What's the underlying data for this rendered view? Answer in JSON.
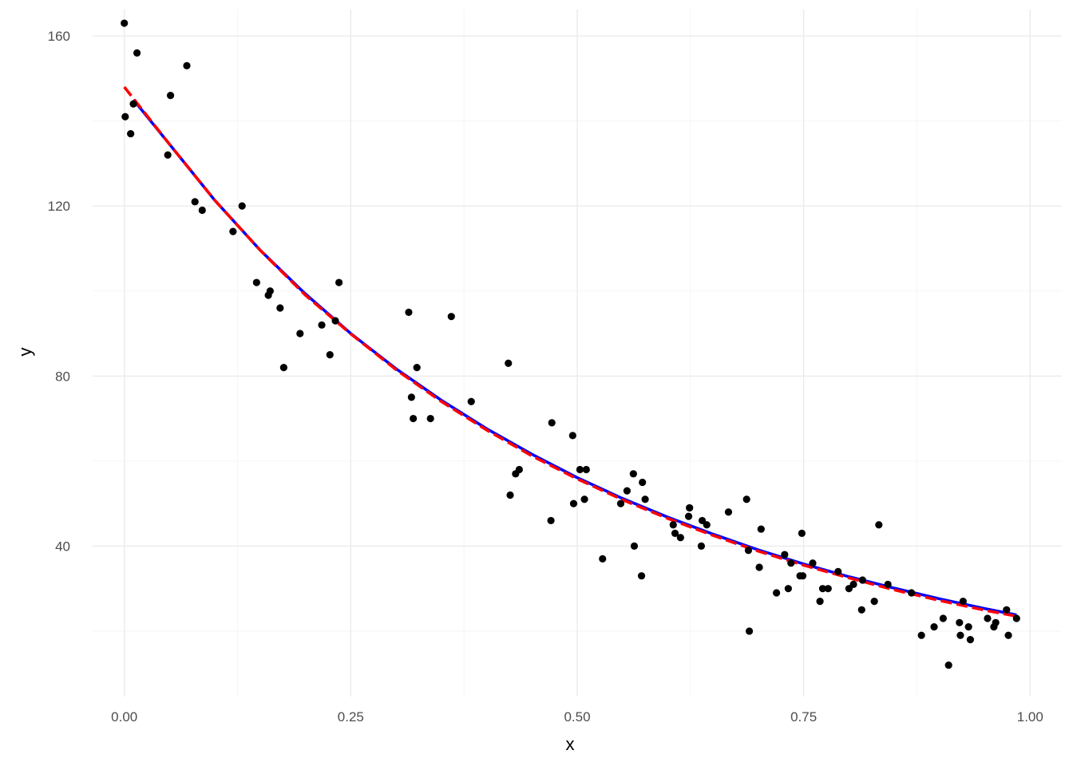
{
  "chart_data": {
    "type": "scatter",
    "xlabel": "x",
    "ylabel": "y",
    "xlim": [
      -0.035,
      1.035
    ],
    "ylim": [
      4.6,
      166.2
    ],
    "x_ticks": [
      0.0,
      0.25,
      0.5,
      0.75,
      1.0
    ],
    "x_tick_labels": [
      "0.00",
      "0.25",
      "0.50",
      "0.75",
      "1.00"
    ],
    "y_ticks": [
      40,
      80,
      120,
      160
    ],
    "y_tick_labels": [
      "40",
      "80",
      "120",
      "160"
    ],
    "grid": true,
    "legend": "none",
    "series": [
      {
        "kind": "points",
        "color": "#000000",
        "points": [
          [
            0.0,
            163.0
          ],
          [
            0.001,
            141.0
          ],
          [
            0.007,
            137.0
          ],
          [
            0.01,
            144.0
          ],
          [
            0.014,
            156.0
          ],
          [
            0.048,
            132.0
          ],
          [
            0.051,
            146.0
          ],
          [
            0.069,
            153.0
          ],
          [
            0.078,
            121.0
          ],
          [
            0.086,
            119.0
          ],
          [
            0.12,
            114.0
          ],
          [
            0.13,
            120.0
          ],
          [
            0.146,
            102.0
          ],
          [
            0.159,
            99.0
          ],
          [
            0.161,
            100.0
          ],
          [
            0.172,
            96.0
          ],
          [
            0.176,
            82.0
          ],
          [
            0.194,
            90.0
          ],
          [
            0.218,
            92.0
          ],
          [
            0.227,
            85.0
          ],
          [
            0.233,
            93.0
          ],
          [
            0.237,
            102.0
          ],
          [
            0.314,
            95.0
          ],
          [
            0.317,
            75.0
          ],
          [
            0.319,
            70.0
          ],
          [
            0.323,
            82.0
          ],
          [
            0.338,
            70.0
          ],
          [
            0.361,
            94.0
          ],
          [
            0.383,
            74.0
          ],
          [
            0.424,
            83.0
          ],
          [
            0.426,
            52.0
          ],
          [
            0.432,
            57.0
          ],
          [
            0.436,
            58.0
          ],
          [
            0.471,
            46.0
          ],
          [
            0.472,
            69.0
          ],
          [
            0.495,
            66.0
          ],
          [
            0.496,
            50.0
          ],
          [
            0.503,
            58.0
          ],
          [
            0.508,
            51.0
          ],
          [
            0.51,
            58.0
          ],
          [
            0.528,
            37.0
          ],
          [
            0.548,
            50.0
          ],
          [
            0.555,
            53.0
          ],
          [
            0.562,
            57.0
          ],
          [
            0.563,
            40.0
          ],
          [
            0.571,
            33.0
          ],
          [
            0.572,
            55.0
          ],
          [
            0.575,
            51.0
          ],
          [
            0.606,
            45.0
          ],
          [
            0.608,
            43.0
          ],
          [
            0.614,
            42.0
          ],
          [
            0.623,
            47.0
          ],
          [
            0.624,
            49.0
          ],
          [
            0.637,
            40.0
          ],
          [
            0.638,
            46.0
          ],
          [
            0.643,
            45.0
          ],
          [
            0.667,
            48.0
          ],
          [
            0.687,
            51.0
          ],
          [
            0.689,
            39.0
          ],
          [
            0.69,
            20.0
          ],
          [
            0.701,
            35.0
          ],
          [
            0.703,
            44.0
          ],
          [
            0.72,
            29.0
          ],
          [
            0.729,
            38.0
          ],
          [
            0.733,
            30.0
          ],
          [
            0.736,
            36.0
          ],
          [
            0.746,
            33.0
          ],
          [
            0.748,
            43.0
          ],
          [
            0.749,
            33.0
          ],
          [
            0.76,
            36.0
          ],
          [
            0.768,
            27.0
          ],
          [
            0.771,
            30.0
          ],
          [
            0.777,
            30.0
          ],
          [
            0.788,
            34.0
          ],
          [
            0.8,
            30.0
          ],
          [
            0.805,
            31.0
          ],
          [
            0.814,
            25.0
          ],
          [
            0.815,
            32.0
          ],
          [
            0.828,
            27.0
          ],
          [
            0.833,
            45.0
          ],
          [
            0.843,
            31.0
          ],
          [
            0.869,
            29.0
          ],
          [
            0.88,
            19.0
          ],
          [
            0.894,
            21.0
          ],
          [
            0.904,
            23.0
          ],
          [
            0.91,
            12.0
          ],
          [
            0.922,
            22.0
          ],
          [
            0.923,
            19.0
          ],
          [
            0.926,
            27.0
          ],
          [
            0.932,
            21.0
          ],
          [
            0.934,
            18.0
          ],
          [
            0.953,
            23.0
          ],
          [
            0.96,
            21.0
          ],
          [
            0.962,
            22.0
          ],
          [
            0.974,
            25.0
          ],
          [
            0.976,
            19.0
          ],
          [
            0.985,
            23.0
          ]
        ]
      },
      {
        "kind": "line",
        "color": "#0000ff",
        "dash": "solid",
        "points": [
          [
            0.01,
            145.0
          ],
          [
            0.05,
            134.5
          ],
          [
            0.1,
            121.3
          ],
          [
            0.15,
            109.6
          ],
          [
            0.2,
            99.3
          ],
          [
            0.25,
            90.0
          ],
          [
            0.3,
            81.7
          ],
          [
            0.35,
            74.3
          ],
          [
            0.4,
            67.6
          ],
          [
            0.45,
            61.6
          ],
          [
            0.5,
            56.1
          ],
          [
            0.55,
            51.2
          ],
          [
            0.6,
            46.8
          ],
          [
            0.65,
            42.8
          ],
          [
            0.7,
            39.1
          ],
          [
            0.75,
            35.8
          ],
          [
            0.8,
            32.8
          ],
          [
            0.85,
            30.1
          ],
          [
            0.9,
            27.6
          ],
          [
            0.95,
            25.3
          ],
          [
            0.985,
            23.8
          ]
        ]
      },
      {
        "kind": "line",
        "color": "#ff0000",
        "dash": "dashed",
        "points": [
          [
            0.0,
            148.0
          ],
          [
            0.05,
            134.5
          ],
          [
            0.1,
            121.3
          ],
          [
            0.15,
            109.6
          ],
          [
            0.2,
            99.0
          ],
          [
            0.25,
            89.9
          ],
          [
            0.3,
            81.5
          ],
          [
            0.35,
            74.0
          ],
          [
            0.4,
            67.3
          ],
          [
            0.45,
            61.2
          ],
          [
            0.5,
            55.8
          ],
          [
            0.55,
            50.9
          ],
          [
            0.6,
            46.5
          ],
          [
            0.65,
            42.5
          ],
          [
            0.7,
            38.8
          ],
          [
            0.75,
            35.5
          ],
          [
            0.8,
            32.5
          ],
          [
            0.85,
            29.7
          ],
          [
            0.9,
            27.2
          ],
          [
            0.95,
            24.9
          ],
          [
            0.985,
            23.5
          ]
        ]
      }
    ]
  }
}
